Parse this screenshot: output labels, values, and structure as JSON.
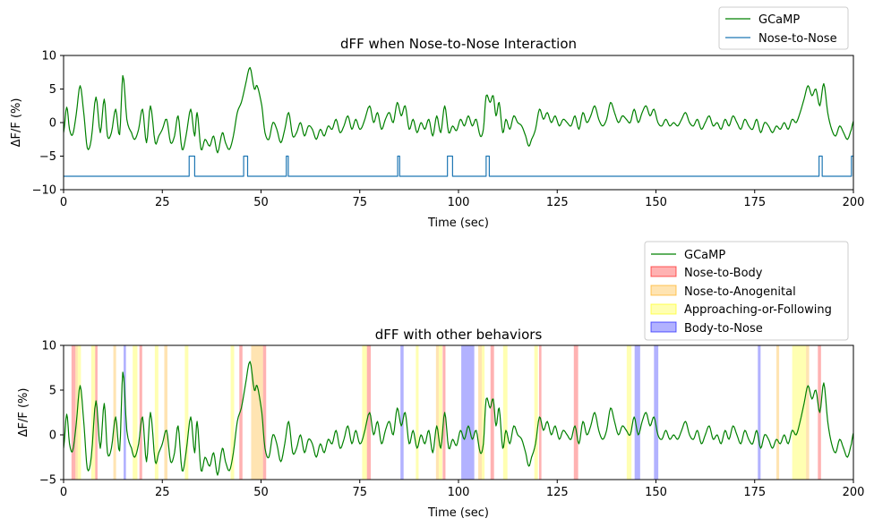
{
  "chart_data": [
    {
      "type": "line",
      "title": "dFF when Nose-to-Nose Interaction",
      "xlabel": "Time (sec)",
      "ylabel": "ΔF/F (%)",
      "xlim": [
        0,
        200
      ],
      "ylim": [
        -10,
        10
      ],
      "xticks": [
        0,
        25,
        50,
        75,
        100,
        125,
        150,
        175,
        200
      ],
      "yticks": [
        -10,
        -5,
        0,
        5,
        10
      ],
      "grid": false,
      "legend_position": "top-right, above plot",
      "series": [
        {
          "name": "GCaMP",
          "color": "#008000",
          "trace": "gcamp"
        },
        {
          "name": "Nose-to-Nose",
          "color": "#1f77b4",
          "baseline": -8,
          "high": -5,
          "bouts": [
            [
              31.8,
              33.2
            ],
            [
              45.6,
              46.6
            ],
            [
              56.4,
              56.9
            ],
            [
              84.6,
              85.1
            ],
            [
              97.2,
              98.5
            ],
            [
              107.0,
              107.8
            ],
            [
              191.3,
              192.1
            ],
            [
              199.5,
              200
            ]
          ]
        }
      ]
    },
    {
      "type": "line",
      "title": "dFF with other behaviors",
      "xlabel": "Time (sec)",
      "ylabel": "ΔF/F (%)",
      "xlim": [
        0,
        200
      ],
      "ylim": [
        -5,
        10
      ],
      "xticks": [
        0,
        25,
        50,
        75,
        100,
        125,
        150,
        175,
        200
      ],
      "yticks": [
        -5,
        0,
        5,
        10
      ],
      "grid": false,
      "legend_position": "top-right, above plot",
      "series": [
        {
          "name": "GCaMP",
          "color": "#008000",
          "trace": "gcamp"
        }
      ],
      "behaviors": [
        {
          "name": "Nose-to-Body",
          "color": "#ff0000",
          "opacity": 0.3,
          "intervals": [
            [
              2.0,
              3.0
            ],
            [
              8.0,
              8.6
            ],
            [
              19.2,
              19.9
            ],
            [
              44.5,
              45.3
            ],
            [
              50.5,
              51.3
            ],
            [
              76.8,
              77.8
            ],
            [
              96.0,
              96.7
            ],
            [
              108.1,
              109.0
            ],
            [
              120.4,
              121.0
            ],
            [
              129.2,
              130.3
            ],
            [
              191.0,
              191.8
            ]
          ]
        },
        {
          "name": "Nose-to-Anogenital",
          "color": "#ffa500",
          "opacity": 0.3,
          "intervals": [
            [
              3.0,
              3.6
            ],
            [
              12.6,
              13.3
            ],
            [
              25.5,
              26.3
            ],
            [
              47.5,
              50.5
            ],
            [
              94.3,
              95.0
            ],
            [
              105.0,
              105.9
            ],
            [
              180.5,
              181.2
            ],
            [
              188.0,
              188.8
            ]
          ]
        },
        {
          "name": "Approaching-or-Following",
          "color": "#ffff00",
          "opacity": 0.3,
          "intervals": [
            [
              3.6,
              4.4
            ],
            [
              7.0,
              8.0
            ],
            [
              17.5,
              18.7
            ],
            [
              23.1,
              24.0
            ],
            [
              30.7,
              31.6
            ],
            [
              42.3,
              43.2
            ],
            [
              75.6,
              76.8
            ],
            [
              89.2,
              89.9
            ],
            [
              95.0,
              95.9
            ],
            [
              105.9,
              106.6
            ],
            [
              111.3,
              112.4
            ],
            [
              119.2,
              120.1
            ],
            [
              142.6,
              143.8
            ],
            [
              184.5,
              188.0
            ]
          ]
        },
        {
          "name": "Body-to-Nose",
          "color": "#0000ff",
          "opacity": 0.3,
          "intervals": [
            [
              15.2,
              15.8
            ],
            [
              85.3,
              86.1
            ],
            [
              100.7,
              104.0
            ],
            [
              144.6,
              146.0
            ],
            [
              149.5,
              150.6
            ],
            [
              175.8,
              176.5
            ]
          ]
        }
      ]
    }
  ],
  "gcamp_trace": {
    "keypoints": [
      [
        0,
        -1.5
      ],
      [
        0.8,
        2.3
      ],
      [
        1.5,
        -1.0
      ],
      [
        2.3,
        -1.8
      ],
      [
        3.2,
        1.2
      ],
      [
        4.2,
        5.5
      ],
      [
        5.2,
        1.0
      ],
      [
        6.0,
        -3.8
      ],
      [
        7.0,
        -2.5
      ],
      [
        8.2,
        3.8
      ],
      [
        9.3,
        -1.5
      ],
      [
        10.3,
        3.5
      ],
      [
        11.1,
        -2.0
      ],
      [
        12.1,
        -1.5
      ],
      [
        13.2,
        2.0
      ],
      [
        14.2,
        -1.8
      ],
      [
        15.0,
        7.0
      ],
      [
        16.0,
        0.5
      ],
      [
        17.2,
        -1.5
      ],
      [
        18.0,
        -2.5
      ],
      [
        19.0,
        -1.0
      ],
      [
        20.0,
        2.0
      ],
      [
        21.0,
        -3.0
      ],
      [
        22.0,
        2.5
      ],
      [
        23.2,
        -3.0
      ],
      [
        24.1,
        -2.0
      ],
      [
        25.0,
        -1.0
      ],
      [
        26.1,
        0.5
      ],
      [
        27.1,
        -3.0
      ],
      [
        28.1,
        -2.0
      ],
      [
        29.0,
        1.0
      ],
      [
        30.0,
        -4.0
      ],
      [
        31.0,
        -2.0
      ],
      [
        32.2,
        2.0
      ],
      [
        33.2,
        -2.0
      ],
      [
        33.8,
        1.5
      ],
      [
        34.8,
        -4.0
      ],
      [
        35.8,
        -2.5
      ],
      [
        37.0,
        -3.5
      ],
      [
        38.0,
        -2.0
      ],
      [
        39.0,
        -4.5
      ],
      [
        40.2,
        -1.5
      ],
      [
        41.0,
        -3.0
      ],
      [
        42.0,
        -4.0
      ],
      [
        43.0,
        -2.0
      ],
      [
        44.0,
        1.5
      ],
      [
        45.0,
        3.0
      ],
      [
        46.0,
        5.5
      ],
      [
        47.2,
        8.2
      ],
      [
        48.3,
        5.0
      ],
      [
        49.0,
        5.5
      ],
      [
        50.2,
        2.5
      ],
      [
        51.0,
        -1.5
      ],
      [
        52.0,
        -2.5
      ],
      [
        53.0,
        0.0
      ],
      [
        54.0,
        -1.0
      ],
      [
        55.0,
        -3.0
      ],
      [
        56.0,
        -1.0
      ],
      [
        57.0,
        1.5
      ],
      [
        58.0,
        -2.0
      ],
      [
        59.0,
        -1.5
      ],
      [
        60.0,
        0.0
      ],
      [
        61.0,
        -2.0
      ],
      [
        62.0,
        -0.5
      ],
      [
        63.0,
        -1.0
      ],
      [
        64.0,
        -2.5
      ],
      [
        65.0,
        -1.0
      ],
      [
        66.0,
        -2.0
      ],
      [
        67.0,
        -0.5
      ],
      [
        68.0,
        -1.0
      ],
      [
        69.0,
        0.5
      ],
      [
        70.0,
        -1.5
      ],
      [
        71.0,
        -0.5
      ],
      [
        72.0,
        1.0
      ],
      [
        73.0,
        -1.0
      ],
      [
        74.0,
        0.5
      ],
      [
        75.0,
        -1.0
      ],
      [
        76.0,
        0.0
      ],
      [
        77.5,
        2.5
      ],
      [
        78.5,
        0.0
      ],
      [
        79.5,
        1.5
      ],
      [
        80.5,
        -1.0
      ],
      [
        81.5,
        0.5
      ],
      [
        82.5,
        1.5
      ],
      [
        83.5,
        0.0
      ],
      [
        84.5,
        3.0
      ],
      [
        85.5,
        1.0
      ],
      [
        86.5,
        2.5
      ],
      [
        87.5,
        -1.0
      ],
      [
        88.5,
        0.5
      ],
      [
        89.5,
        -1.5
      ],
      [
        90.5,
        0.0
      ],
      [
        91.5,
        -1.0
      ],
      [
        92.5,
        0.5
      ],
      [
        93.5,
        -2.0
      ],
      [
        94.5,
        1.0
      ],
      [
        95.5,
        -1.5
      ],
      [
        96.5,
        2.5
      ],
      [
        97.5,
        -1.5
      ],
      [
        98.5,
        -0.5
      ],
      [
        99.5,
        -1.2
      ],
      [
        100.5,
        0.5
      ],
      [
        101.5,
        -0.5
      ],
      [
        102.5,
        1.0
      ],
      [
        103.5,
        -0.5
      ],
      [
        104.5,
        0.5
      ],
      [
        105.5,
        -2.0
      ],
      [
        106.3,
        -1.0
      ],
      [
        107.0,
        4.0
      ],
      [
        108.0,
        3.0
      ],
      [
        108.8,
        4.0
      ],
      [
        109.5,
        1.0
      ],
      [
        110.3,
        3.0
      ],
      [
        111.2,
        -1.5
      ],
      [
        112.0,
        0.5
      ],
      [
        113.0,
        -1.0
      ],
      [
        114.0,
        1.0
      ],
      [
        115.0,
        0.0
      ],
      [
        116.0,
        -0.5
      ],
      [
        117.0,
        -2.0
      ],
      [
        117.8,
        -3.5
      ],
      [
        118.5,
        -2.5
      ],
      [
        119.5,
        -1.0
      ],
      [
        120.5,
        2.0
      ],
      [
        121.5,
        0.5
      ],
      [
        122.5,
        1.5
      ],
      [
        123.5,
        0.0
      ],
      [
        124.5,
        1.0
      ],
      [
        125.5,
        -0.5
      ],
      [
        126.5,
        0.5
      ],
      [
        127.5,
        0.0
      ],
      [
        128.5,
        -0.5
      ],
      [
        129.5,
        1.0
      ],
      [
        130.5,
        -1.0
      ],
      [
        131.5,
        1.5
      ],
      [
        132.5,
        0.0
      ],
      [
        133.5,
        1.0
      ],
      [
        134.5,
        2.5
      ],
      [
        135.5,
        0.5
      ],
      [
        136.5,
        -0.5
      ],
      [
        137.5,
        0.5
      ],
      [
        138.5,
        3.0
      ],
      [
        139.5,
        1.5
      ],
      [
        140.5,
        0.0
      ],
      [
        141.5,
        1.0
      ],
      [
        142.5,
        0.5
      ],
      [
        143.5,
        0.0
      ],
      [
        144.5,
        2.0
      ],
      [
        145.5,
        0.0
      ],
      [
        146.5,
        1.5
      ],
      [
        147.5,
        2.5
      ],
      [
        148.5,
        1.0
      ],
      [
        149.5,
        2.0
      ],
      [
        150.5,
        0.0
      ],
      [
        151.5,
        -0.5
      ],
      [
        152.5,
        0.5
      ],
      [
        153.5,
        -0.5
      ],
      [
        154.5,
        0.0
      ],
      [
        155.5,
        -0.5
      ],
      [
        156.5,
        0.5
      ],
      [
        157.5,
        1.5
      ],
      [
        158.5,
        0.0
      ],
      [
        159.5,
        -0.5
      ],
      [
        160.5,
        0.5
      ],
      [
        161.5,
        -1.0
      ],
      [
        162.5,
        0.0
      ],
      [
        163.5,
        1.0
      ],
      [
        164.5,
        -0.5
      ],
      [
        165.5,
        0.0
      ],
      [
        166.5,
        -1.0
      ],
      [
        167.5,
        0.5
      ],
      [
        168.5,
        -0.5
      ],
      [
        169.5,
        1.0
      ],
      [
        170.5,
        0.0
      ],
      [
        171.5,
        -1.0
      ],
      [
        172.5,
        0.5
      ],
      [
        173.5,
        -0.5
      ],
      [
        174.5,
        -1.0
      ],
      [
        175.5,
        0.5
      ],
      [
        176.5,
        -1.5
      ],
      [
        177.5,
        0.0
      ],
      [
        178.5,
        -0.5
      ],
      [
        179.5,
        -1.5
      ],
      [
        180.5,
        -0.5
      ],
      [
        181.5,
        -1.0
      ],
      [
        182.5,
        0.0
      ],
      [
        183.5,
        -1.0
      ],
      [
        184.5,
        0.5
      ],
      [
        185.5,
        0.0
      ],
      [
        186.5,
        1.5
      ],
      [
        187.5,
        3.5
      ],
      [
        188.5,
        5.5
      ],
      [
        189.5,
        4.0
      ],
      [
        190.5,
        5.0
      ],
      [
        191.5,
        2.5
      ],
      [
        192.5,
        5.8
      ],
      [
        193.5,
        1.5
      ],
      [
        194.5,
        -1.0
      ],
      [
        195.5,
        -2.0
      ],
      [
        196.5,
        -0.5
      ],
      [
        197.5,
        -1.5
      ],
      [
        198.5,
        -2.5
      ],
      [
        199.5,
        -1.0
      ],
      [
        200,
        0.2
      ]
    ]
  }
}
